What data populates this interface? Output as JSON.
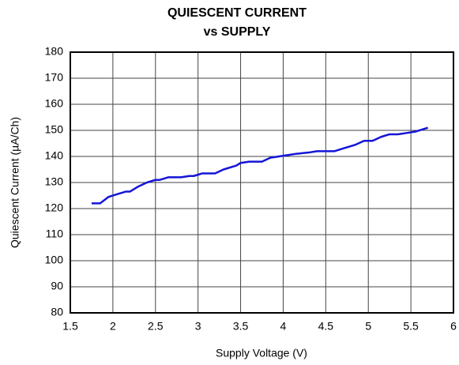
{
  "chart_data": {
    "type": "line",
    "title": "QUIESCENT CURRENT",
    "subtitle": "vs SUPPLY",
    "x_label": "Supply Voltage (V)",
    "y_label": "Quiescent Current (µA/Ch)",
    "x": [
      1.75,
      1.85,
      1.95,
      2.05,
      2.15,
      2.2,
      2.3,
      2.4,
      2.5,
      2.55,
      2.65,
      2.8,
      2.9,
      2.95,
      3.05,
      3.2,
      3.3,
      3.45,
      3.5,
      3.6,
      3.75,
      3.85,
      3.95,
      4.05,
      4.15,
      4.3,
      4.4,
      4.6,
      4.7,
      4.85,
      4.95,
      5.05,
      5.15,
      5.25,
      5.35,
      5.45,
      5.55,
      5.7
    ],
    "series": [
      {
        "name": "Quiescent Current",
        "color": "#1414d8",
        "values": [
          122,
          122,
          124.5,
          125.5,
          126.5,
          126.5,
          128.5,
          130,
          131,
          131,
          132,
          132,
          132.5,
          132.5,
          133.5,
          133.5,
          135,
          136.5,
          137.5,
          138,
          138,
          139.5,
          140,
          140.5,
          141,
          141.5,
          142,
          142,
          143,
          144.5,
          146,
          146,
          147.5,
          148.5,
          148.5,
          149,
          149.5,
          151
        ]
      }
    ],
    "xlim": [
      1.5,
      6
    ],
    "xticks": [
      1.5,
      2,
      2.5,
      3,
      3.5,
      4,
      4.5,
      5,
      5.5,
      6
    ],
    "ylim": [
      80,
      180
    ],
    "yticks": [
      80,
      90,
      100,
      110,
      120,
      130,
      140,
      150,
      160,
      170,
      180
    ],
    "grid": true
  }
}
